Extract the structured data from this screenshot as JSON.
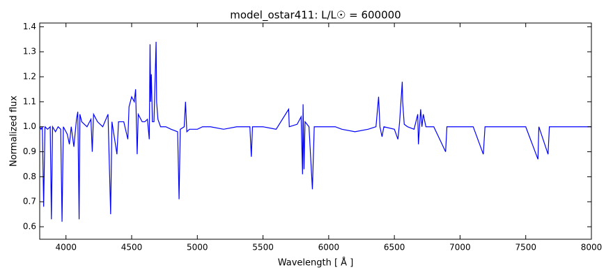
{
  "chart_data": {
    "type": "line",
    "title": "model_ostar411: L/L☉ = 600000",
    "x_label": "Wavelength [ Å ]",
    "y_label": "Normalized flux",
    "xlim": [
      3800,
      8000
    ],
    "ylim": [
      0.55,
      1.415
    ],
    "xticks": [
      4000,
      4500,
      5000,
      5500,
      6000,
      6500,
      7000,
      7500,
      8000
    ],
    "yticks": [
      0.6,
      0.7,
      0.8,
      0.9,
      {
        "value": 1,
        "label": "1.0"
      },
      1.1,
      1.2,
      1.3,
      1.4
    ],
    "x": [
      3800,
      3810,
      3820,
      3830,
      3840,
      3860,
      3880,
      3889,
      3898,
      3920,
      3940,
      3960,
      3970,
      3980,
      4010,
      4026,
      4040,
      4060,
      4080,
      4090,
      4100,
      4106,
      4120,
      4140,
      4160,
      4190,
      4200,
      4210,
      4240,
      4280,
      4320,
      4340,
      4350,
      4388,
      4400,
      4440,
      4471,
      4480,
      4500,
      4520,
      4530,
      4542,
      4550,
      4580,
      4600,
      4620,
      4634,
      4640,
      4645,
      4650,
      4658,
      4670,
      4686,
      4690,
      4700,
      4720,
      4760,
      4800,
      4850,
      4861,
      4870,
      4900,
      4910,
      4920,
      4940,
      5000,
      5040,
      5100,
      5200,
      5300,
      5400,
      5411,
      5420,
      5500,
      5600,
      5695,
      5700,
      5760,
      5790,
      5801,
      5805,
      5812,
      5820,
      5850,
      5876,
      5890,
      6000,
      6050,
      6100,
      6200,
      6300,
      6360,
      6380,
      6390,
      6406,
      6420,
      6500,
      6527,
      6540,
      6560,
      6563,
      6575,
      6600,
      6650,
      6678,
      6683,
      6700,
      6710,
      6720,
      6740,
      6800,
      6890,
      6900,
      7000,
      7065,
      7100,
      7177,
      7190,
      7300,
      7500,
      7593,
      7600,
      7670,
      7680,
      7800,
      8000
    ],
    "series": [
      {
        "color": "#0000ff",
        "values": [
          1.0,
          0.99,
          1.0,
          0.68,
          1.0,
          0.99,
          1.0,
          0.63,
          1.0,
          0.98,
          1.0,
          0.99,
          0.62,
          1.0,
          0.97,
          0.93,
          1.0,
          0.92,
          1.03,
          1.06,
          0.63,
          1.05,
          1.02,
          1.01,
          1.0,
          1.03,
          0.9,
          1.05,
          1.02,
          1.0,
          1.05,
          0.65,
          1.02,
          0.89,
          1.02,
          1.02,
          0.95,
          1.08,
          1.12,
          1.1,
          1.15,
          0.89,
          1.05,
          1.02,
          1.02,
          1.03,
          0.95,
          1.33,
          1.1,
          1.21,
          1.02,
          1.02,
          1.34,
          1.1,
          1.03,
          1.0,
          1.0,
          0.99,
          0.98,
          0.71,
          0.99,
          1.0,
          1.1,
          0.98,
          0.99,
          0.99,
          1.0,
          1.0,
          0.99,
          1.0,
          1.0,
          0.88,
          1.0,
          1.0,
          0.99,
          1.07,
          1.0,
          1.01,
          1.04,
          0.81,
          1.09,
          0.83,
          1.02,
          1.0,
          0.75,
          1.0,
          1.0,
          1.0,
          0.99,
          0.98,
          0.99,
          1.0,
          1.12,
          1.0,
          0.96,
          1.0,
          0.99,
          0.95,
          1.02,
          1.18,
          1.1,
          1.01,
          1.0,
          0.99,
          1.05,
          0.93,
          1.07,
          1.0,
          1.05,
          1.0,
          1.0,
          0.9,
          1.0,
          1.0,
          1.0,
          1.0,
          0.89,
          1.0,
          1.0,
          1.0,
          0.87,
          1.0,
          0.89,
          1.0,
          1.0,
          1.0
        ]
      }
    ]
  }
}
